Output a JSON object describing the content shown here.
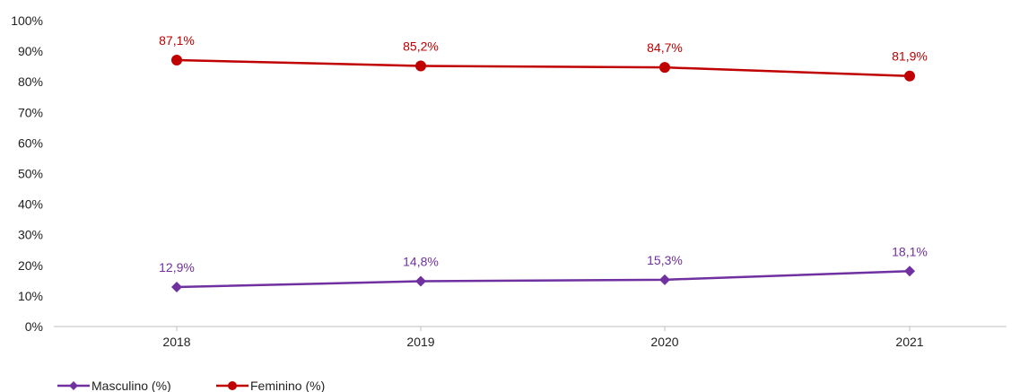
{
  "chart_data": {
    "type": "line",
    "categories": [
      "2018",
      "2019",
      "2020",
      "2021"
    ],
    "ylim": [
      0,
      100
    ],
    "yticks": [
      "0%",
      "10%",
      "20%",
      "30%",
      "40%",
      "50%",
      "60%",
      "70%",
      "80%",
      "90%",
      "100%"
    ],
    "grid": false,
    "legend_position": "bottom-left",
    "series": [
      {
        "name": "Masculino (%)",
        "values": [
          12.9,
          14.8,
          15.3,
          18.1
        ],
        "labels": [
          "12,9%",
          "14,8%",
          "15,3%",
          "18,1%"
        ],
        "color": "#7030A0",
        "marker": "diamond"
      },
      {
        "name": "Feminino (%)",
        "values": [
          87.1,
          85.2,
          84.7,
          81.9
        ],
        "labels": [
          "87,1%",
          "85,2%",
          "84,7%",
          "81,9%"
        ],
        "color": "#C00000",
        "marker": "circle"
      }
    ]
  }
}
